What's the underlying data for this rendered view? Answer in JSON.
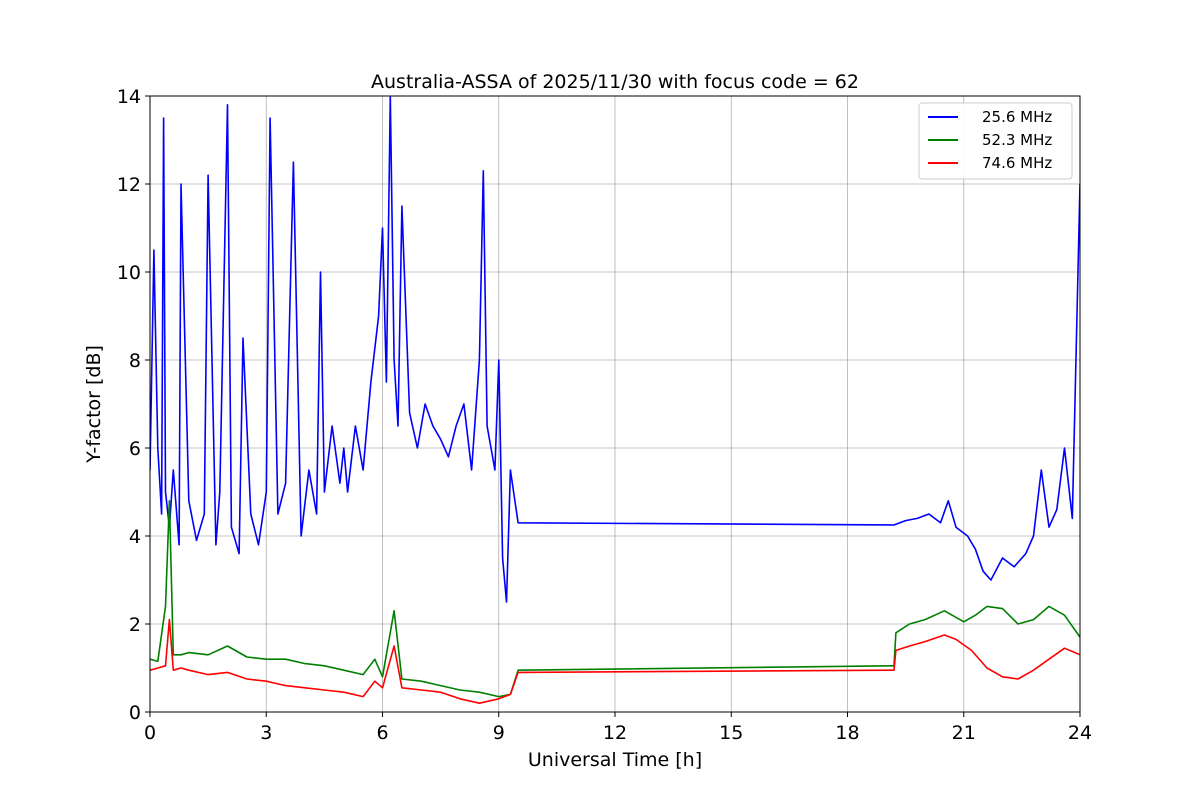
{
  "chart_data": {
    "type": "line",
    "title": "Australia-ASSA of 2025/11/30 with focus code = 62",
    "xlabel": "Universal Time [h]",
    "ylabel": "Y-factor [dB]",
    "xlim": [
      0,
      24
    ],
    "ylim": [
      0,
      14
    ],
    "xticks": [
      0,
      3,
      6,
      9,
      12,
      15,
      18,
      21,
      24
    ],
    "yticks": [
      0,
      2,
      4,
      6,
      8,
      10,
      12,
      14
    ],
    "xtick_labels": [
      "0",
      "3",
      "6",
      "9",
      "12",
      "15",
      "18",
      "21",
      "24"
    ],
    "ytick_labels": [
      "0",
      "2",
      "4",
      "6",
      "8",
      "10",
      "12",
      "14"
    ],
    "grid": true,
    "legend_position": "top-right",
    "series": [
      {
        "name": "25.6 MHz",
        "color": "#0000ff",
        "x": [
          0,
          0.1,
          0.2,
          0.3,
          0.35,
          0.4,
          0.5,
          0.6,
          0.75,
          0.8,
          1.0,
          1.2,
          1.4,
          1.5,
          1.7,
          1.8,
          2.0,
          2.1,
          2.3,
          2.4,
          2.6,
          2.8,
          3.0,
          3.1,
          3.3,
          3.5,
          3.7,
          3.9,
          4.1,
          4.3,
          4.4,
          4.5,
          4.7,
          4.9,
          5.0,
          5.1,
          5.3,
          5.5,
          5.7,
          5.9,
          6.0,
          6.1,
          6.2,
          6.3,
          6.4,
          6.5,
          6.7,
          6.9,
          7.1,
          7.3,
          7.5,
          7.7,
          7.9,
          8.1,
          8.3,
          8.5,
          8.6,
          8.7,
          8.9,
          9.0,
          9.1,
          9.2,
          9.3,
          9.5,
          19.2,
          19.5,
          19.8,
          20.1,
          20.4,
          20.6,
          20.8,
          21.1,
          21.3,
          21.5,
          21.7,
          22.0,
          22.3,
          22.6,
          22.8,
          23.0,
          23.2,
          23.4,
          23.6,
          23.8,
          24.0
        ],
        "y": [
          5.5,
          10.5,
          6.0,
          4.5,
          13.5,
          5.0,
          4.2,
          5.5,
          3.8,
          12.0,
          4.8,
          3.9,
          4.5,
          12.2,
          3.8,
          5.0,
          13.8,
          4.2,
          3.6,
          8.5,
          4.5,
          3.8,
          5.0,
          13.5,
          4.5,
          5.2,
          12.5,
          4.0,
          5.5,
          4.5,
          10.0,
          5.0,
          6.5,
          5.2,
          6.0,
          5.0,
          6.5,
          5.5,
          7.5,
          9.0,
          11.0,
          7.5,
          14.0,
          8.0,
          6.5,
          11.5,
          6.8,
          6.0,
          7.0,
          6.5,
          6.2,
          5.8,
          6.5,
          7.0,
          5.5,
          8.0,
          12.3,
          6.5,
          5.5,
          8.0,
          3.5,
          2.5,
          5.5,
          4.3,
          4.25,
          4.35,
          4.4,
          4.5,
          4.3,
          4.8,
          4.2,
          4.0,
          3.7,
          3.2,
          3.0,
          3.5,
          3.3,
          3.6,
          4.0,
          5.5,
          4.2,
          4.6,
          6.0,
          4.4,
          12.0
        ]
      },
      {
        "name": "52.3 MHz",
        "color": "#008000",
        "x": [
          0,
          0.2,
          0.4,
          0.5,
          0.6,
          0.8,
          1.0,
          1.5,
          2.0,
          2.5,
          3.0,
          3.5,
          4.0,
          4.5,
          5.0,
          5.5,
          5.8,
          6.0,
          6.3,
          6.5,
          7.0,
          7.5,
          8.0,
          8.5,
          9.0,
          9.3,
          9.5,
          19.2,
          19.25,
          19.6,
          20.0,
          20.5,
          21.0,
          21.3,
          21.6,
          22.0,
          22.4,
          22.8,
          23.2,
          23.6,
          24.0
        ],
        "y": [
          1.2,
          1.15,
          2.4,
          4.8,
          1.3,
          1.3,
          1.35,
          1.3,
          1.5,
          1.25,
          1.2,
          1.2,
          1.1,
          1.05,
          0.95,
          0.85,
          1.2,
          0.8,
          2.3,
          0.75,
          0.7,
          0.6,
          0.5,
          0.45,
          0.35,
          0.4,
          0.95,
          1.05,
          1.8,
          2.0,
          2.1,
          2.3,
          2.05,
          2.2,
          2.4,
          2.35,
          2.0,
          2.1,
          2.4,
          2.2,
          1.7
        ]
      },
      {
        "name": "74.6 MHz",
        "color": "#ff0000",
        "x": [
          0,
          0.2,
          0.4,
          0.5,
          0.6,
          0.8,
          1.0,
          1.5,
          2.0,
          2.5,
          3.0,
          3.5,
          4.0,
          4.5,
          5.0,
          5.5,
          5.8,
          6.0,
          6.3,
          6.5,
          7.0,
          7.5,
          8.0,
          8.5,
          9.0,
          9.3,
          9.5,
          19.2,
          19.25,
          19.6,
          20.0,
          20.5,
          20.8,
          21.2,
          21.6,
          22.0,
          22.4,
          22.8,
          23.2,
          23.6,
          24.0
        ],
        "y": [
          0.95,
          1.0,
          1.05,
          2.1,
          0.95,
          1.0,
          0.95,
          0.85,
          0.9,
          0.75,
          0.7,
          0.6,
          0.55,
          0.5,
          0.45,
          0.35,
          0.7,
          0.55,
          1.5,
          0.55,
          0.5,
          0.45,
          0.3,
          0.2,
          0.3,
          0.4,
          0.9,
          0.95,
          1.4,
          1.5,
          1.6,
          1.75,
          1.65,
          1.4,
          1.0,
          0.8,
          0.75,
          0.95,
          1.2,
          1.45,
          1.3
        ]
      }
    ]
  }
}
